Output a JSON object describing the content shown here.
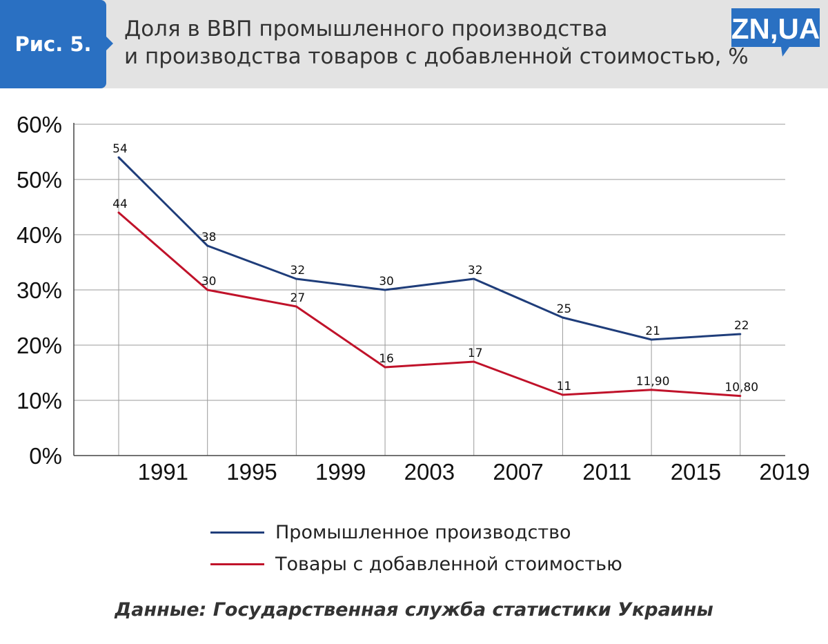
{
  "header": {
    "fig_label": "Рис. 5.",
    "title_line1": "Доля в ВВП промышленного производства",
    "title_line2": "и производства товаров с добавленной стоимостью, %",
    "logo_text": "ZN,UA"
  },
  "colors": {
    "badge": "#2a70c2",
    "series1": "#1f3d7a",
    "series2": "#c0122a"
  },
  "chart_data": {
    "type": "line",
    "x_tick_labels": [
      "1991",
      "1995",
      "1999",
      "2003",
      "2007",
      "2011",
      "2015",
      "2019"
    ],
    "y_tick_labels": [
      "0%",
      "10%",
      "20%",
      "30%",
      "40%",
      "50%",
      "60%"
    ],
    "ylim": [
      0,
      60
    ],
    "grid": "horizontal",
    "legend_position": "bottom",
    "series": [
      {
        "name": "Промышленное производство",
        "color": "#1f3d7a",
        "x": [
          1989,
          1993,
          1997,
          2001,
          2005,
          2009,
          2013,
          2017
        ],
        "values": [
          54,
          38,
          32,
          30,
          32,
          25,
          21,
          22
        ],
        "labels": [
          "54",
          "38",
          "32",
          "30",
          "32",
          "25",
          "21",
          "22"
        ]
      },
      {
        "name": "Товары с добавленной стоимостью",
        "color": "#c0122a",
        "x": [
          1989,
          1993,
          1997,
          2001,
          2005,
          2009,
          2013,
          2017
        ],
        "values": [
          44,
          30,
          27,
          16,
          17,
          11,
          11.9,
          10.8
        ],
        "labels": [
          "44",
          "30",
          "27",
          "16",
          "17",
          "11",
          "11,90",
          "10,80"
        ]
      }
    ]
  },
  "source": "Данные: Государственная служба статистики Украины"
}
